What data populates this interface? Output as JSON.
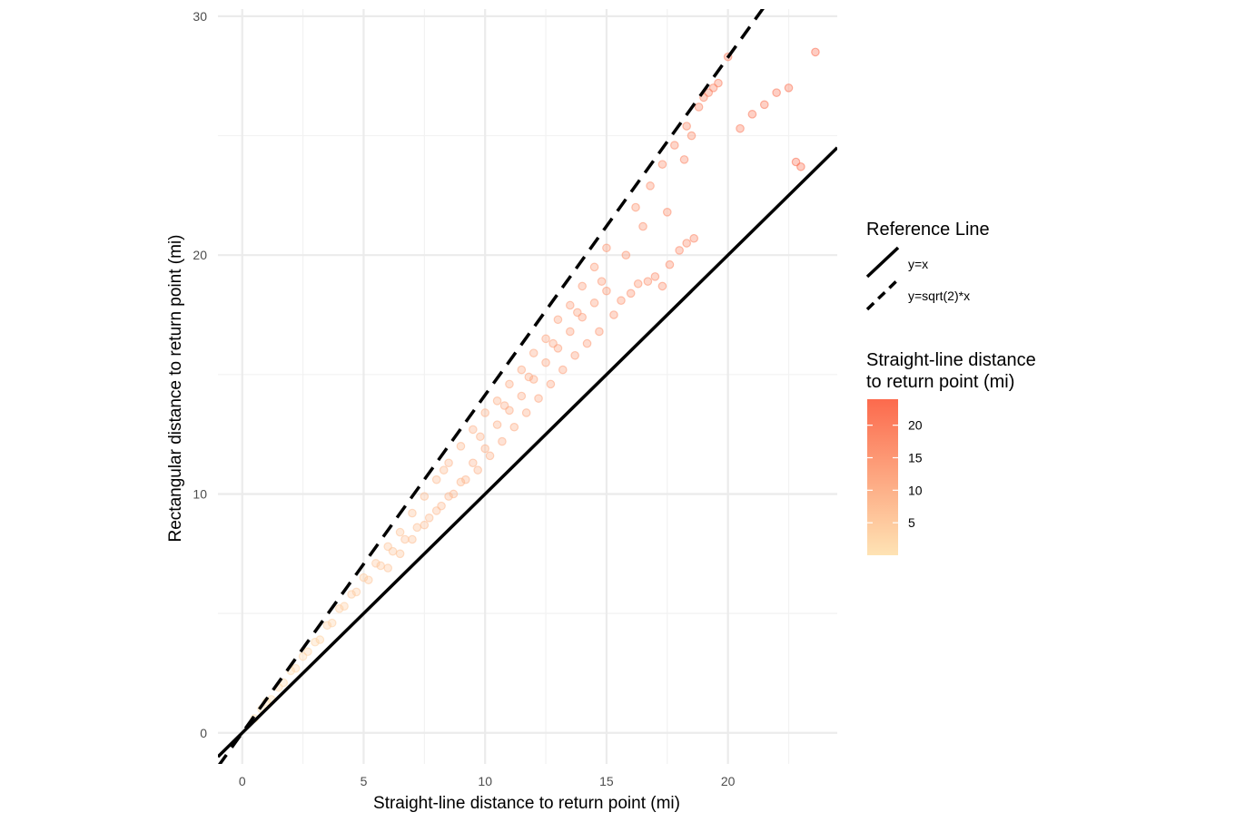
{
  "chart_data": {
    "type": "scatter",
    "xlabel": "Straight-line distance to return point (mi)",
    "ylabel": "Rectangular distance to return point (mi)",
    "xlim": [
      -1,
      24.5
    ],
    "ylim": [
      -1.3,
      30.3
    ],
    "x_ticks": [
      0,
      5,
      10,
      15,
      20
    ],
    "y_ticks": [
      0,
      10,
      20,
      30
    ],
    "grid": true,
    "reference_lines": {
      "title": "Reference Line",
      "items": [
        {
          "label": "y=x",
          "slope": 1,
          "style": "solid"
        },
        {
          "label": "y=sqrt(2)*x",
          "slope": 1.4142,
          "style": "dashed"
        }
      ]
    },
    "color_scale": {
      "title_line1": "Straight-line distance",
      "title_line2": "to return point (mi)",
      "low_color": "#fee3b4",
      "high_color": "#fc6a4d",
      "range": [
        0,
        24
      ],
      "ticks": [
        5,
        10,
        15,
        20
      ]
    },
    "point_alpha": 0.12,
    "points_description": "Dense cloud of points lying between y=x and y=sqrt(2)*x, sparse beyond x=15",
    "points": [
      [
        0.5,
        0.6
      ],
      [
        0.8,
        1.0
      ],
      [
        1.0,
        1.3
      ],
      [
        1.2,
        1.4
      ],
      [
        1.5,
        1.9
      ],
      [
        1.7,
        2.1
      ],
      [
        2.0,
        2.6
      ],
      [
        2.2,
        2.7
      ],
      [
        2.5,
        3.2
      ],
      [
        2.7,
        3.4
      ],
      [
        3.0,
        3.8
      ],
      [
        3.2,
        3.9
      ],
      [
        3.5,
        4.5
      ],
      [
        3.7,
        4.6
      ],
      [
        4.0,
        5.2
      ],
      [
        4.2,
        5.3
      ],
      [
        4.5,
        5.8
      ],
      [
        4.7,
        5.9
      ],
      [
        5.0,
        6.5
      ],
      [
        5.2,
        6.4
      ],
      [
        5.5,
        7.1
      ],
      [
        5.7,
        7.0
      ],
      [
        6.0,
        7.8
      ],
      [
        6.2,
        7.6
      ],
      [
        6.5,
        8.4
      ],
      [
        6.7,
        8.1
      ],
      [
        7.0,
        9.2
      ],
      [
        7.2,
        8.6
      ],
      [
        7.5,
        9.9
      ],
      [
        7.7,
        9.0
      ],
      [
        8.0,
        10.6
      ],
      [
        8.2,
        9.5
      ],
      [
        8.5,
        11.3
      ],
      [
        8.7,
        10.0
      ],
      [
        9.0,
        12.0
      ],
      [
        9.2,
        10.6
      ],
      [
        9.5,
        12.7
      ],
      [
        9.7,
        11.0
      ],
      [
        10.0,
        13.4
      ],
      [
        10.2,
        11.6
      ],
      [
        10.5,
        13.9
      ],
      [
        10.7,
        12.2
      ],
      [
        11.0,
        14.6
      ],
      [
        11.2,
        12.8
      ],
      [
        11.5,
        15.2
      ],
      [
        11.7,
        13.4
      ],
      [
        12.0,
        15.9
      ],
      [
        12.2,
        14.0
      ],
      [
        12.5,
        16.5
      ],
      [
        12.7,
        14.6
      ],
      [
        13.0,
        17.3
      ],
      [
        13.2,
        15.2
      ],
      [
        13.5,
        17.9
      ],
      [
        13.7,
        15.8
      ],
      [
        14.0,
        18.7
      ],
      [
        14.2,
        16.3
      ],
      [
        14.5,
        19.5
      ],
      [
        14.7,
        16.8
      ],
      [
        15.0,
        20.3
      ],
      [
        15.3,
        17.5
      ],
      [
        15.6,
        18.1
      ],
      [
        16.0,
        18.4
      ],
      [
        16.3,
        18.8
      ],
      [
        16.7,
        18.9
      ],
      [
        17.0,
        19.1
      ],
      [
        17.3,
        18.7
      ],
      [
        17.6,
        19.6
      ],
      [
        18.0,
        20.2
      ],
      [
        18.3,
        20.5
      ],
      [
        18.6,
        20.7
      ],
      [
        16.2,
        22.0
      ],
      [
        16.8,
        22.9
      ],
      [
        17.3,
        23.8
      ],
      [
        17.8,
        24.6
      ],
      [
        18.3,
        25.4
      ],
      [
        18.8,
        26.2
      ],
      [
        19.2,
        26.8
      ],
      [
        19.6,
        27.2
      ],
      [
        20.0,
        28.3
      ],
      [
        20.5,
        25.3
      ],
      [
        21.0,
        25.9
      ],
      [
        21.5,
        26.3
      ],
      [
        22.0,
        26.8
      ],
      [
        22.5,
        27.0
      ],
      [
        22.8,
        23.9
      ],
      [
        23.0,
        23.7
      ],
      [
        23.6,
        28.5
      ],
      [
        19.0,
        26.6
      ],
      [
        19.4,
        27.0
      ],
      [
        18.5,
        25.0
      ],
      [
        10.5,
        12.9
      ],
      [
        11.0,
        13.5
      ],
      [
        11.5,
        14.1
      ],
      [
        12.0,
        14.8
      ],
      [
        12.5,
        15.5
      ],
      [
        13.0,
        16.1
      ],
      [
        13.5,
        16.8
      ],
      [
        14.0,
        17.4
      ],
      [
        14.5,
        18.0
      ],
      [
        15.0,
        18.5
      ],
      [
        6.0,
        6.9
      ],
      [
        6.5,
        7.5
      ],
      [
        7.0,
        8.1
      ],
      [
        7.5,
        8.7
      ],
      [
        8.0,
        9.3
      ],
      [
        8.5,
        9.9
      ],
      [
        9.0,
        10.5
      ],
      [
        9.5,
        11.3
      ],
      [
        10.0,
        11.9
      ],
      [
        8.3,
        11.0
      ],
      [
        9.8,
        12.4
      ],
      [
        10.8,
        13.7
      ],
      [
        11.8,
        14.9
      ],
      [
        12.8,
        16.3
      ],
      [
        13.8,
        17.6
      ],
      [
        14.8,
        18.9
      ],
      [
        15.8,
        20.0
      ],
      [
        16.5,
        21.2
      ],
      [
        17.5,
        21.8
      ],
      [
        18.2,
        24.0
      ]
    ]
  }
}
